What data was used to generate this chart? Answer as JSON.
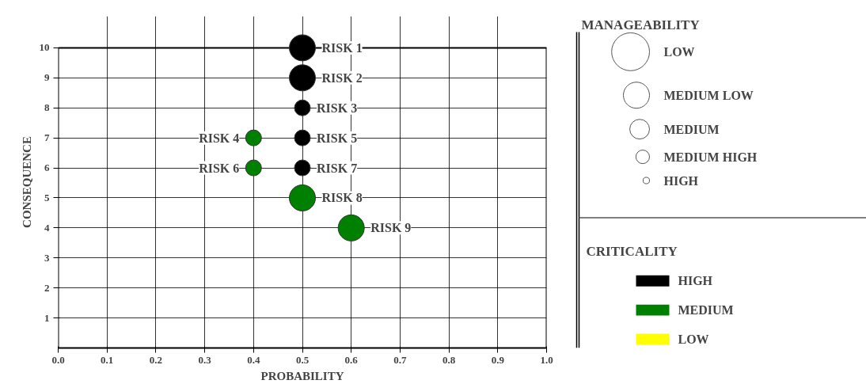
{
  "chart_data": {
    "type": "bubble",
    "xlabel": "PROBABILITY",
    "ylabel": "CONSEQUENCE",
    "xlim": [
      0,
      1
    ],
    "ylim": [
      0,
      10
    ],
    "xticks": [
      {
        "value": 0,
        "label": "0.0"
      },
      0.1,
      0.2,
      0.3,
      0.4,
      0.5,
      0.6,
      0.7,
      0.8,
      0.9,
      {
        "value": 1,
        "label": "1.0"
      }
    ],
    "yticks": [
      1,
      2,
      3,
      4,
      5,
      6,
      7,
      8,
      9,
      10
    ],
    "grid": true,
    "legend": "right",
    "legend_title": "CRITICALITY",
    "series": [
      {
        "name": "HIGH",
        "color": "#000000",
        "x": [
          0.5,
          0.5,
          0.5,
          0.5,
          0.5
        ],
        "values": [
          10,
          9,
          8,
          7,
          6
        ],
        "sizes": [
          1,
          1,
          0.37,
          0.37,
          0.37
        ]
      },
      {
        "name": "MEDIUM",
        "color": "#008000",
        "x": [
          0.4,
          0.4,
          0.5,
          0.6
        ],
        "values": [
          7,
          6,
          5,
          4
        ],
        "sizes": [
          0.37,
          0.37,
          1,
          1
        ]
      },
      {
        "name": "LOW",
        "color": "#ffff00"
      }
    ],
    "size_legend": [
      {
        "value": 2.1,
        "label": "LOW"
      },
      {
        "value": 1,
        "label": "MEDIUM LOW"
      },
      {
        "value": 0.57,
        "label": "MEDIUM"
      },
      {
        "value": 0.27,
        "label": "MEDIUM HIGH"
      },
      {
        "value": 0.06,
        "label": "HIGH"
      }
    ],
    "annotations": [
      "MANAGEABILITY",
      {
        "text": "RISK 1",
        "x": 0.5,
        "y": 10
      },
      {
        "text": "RISK 2",
        "x": 0.5,
        "y": 9
      },
      {
        "text": "RISK 3",
        "x": 0.5,
        "y": 8
      },
      {
        "text": "RISK 4",
        "x": 0.4,
        "y": 7
      },
      {
        "text": "RISK 5",
        "x": 0.5,
        "y": 7
      },
      {
        "text": "RISK 6",
        "x": 0.4,
        "y": 6
      },
      {
        "text": "RISK 7",
        "x": 0.5,
        "y": 6
      },
      {
        "text": "RISK 8",
        "x": 0.5,
        "y": 5
      },
      {
        "text": "RISK 9",
        "x": 0.6,
        "y": 4
      }
    ]
  }
}
